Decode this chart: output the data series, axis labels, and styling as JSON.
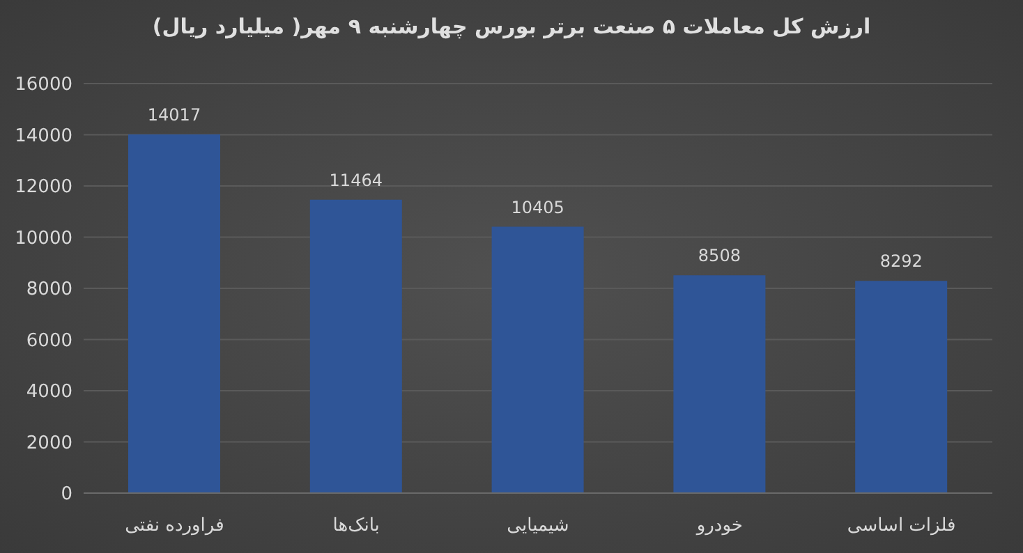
{
  "chart_data": {
    "type": "bar",
    "title": "ارزش کل معاملات ۵ صنعت برتر بورس چهارشنبه ۹ مهر( میلیارد ریال)",
    "categories": [
      "فراورده نفتی",
      "بانک‌ها",
      "شیمیایی",
      "خودرو",
      "فلزات اساسی"
    ],
    "values": [
      14017,
      11464,
      10405,
      8508,
      8292
    ],
    "color": "#2f5597",
    "ylim": [
      0,
      16000
    ],
    "yticks": [
      0,
      2000,
      4000,
      6000,
      8000,
      10000,
      12000,
      14000,
      16000
    ],
    "grid": "y",
    "data_labels": true
  }
}
